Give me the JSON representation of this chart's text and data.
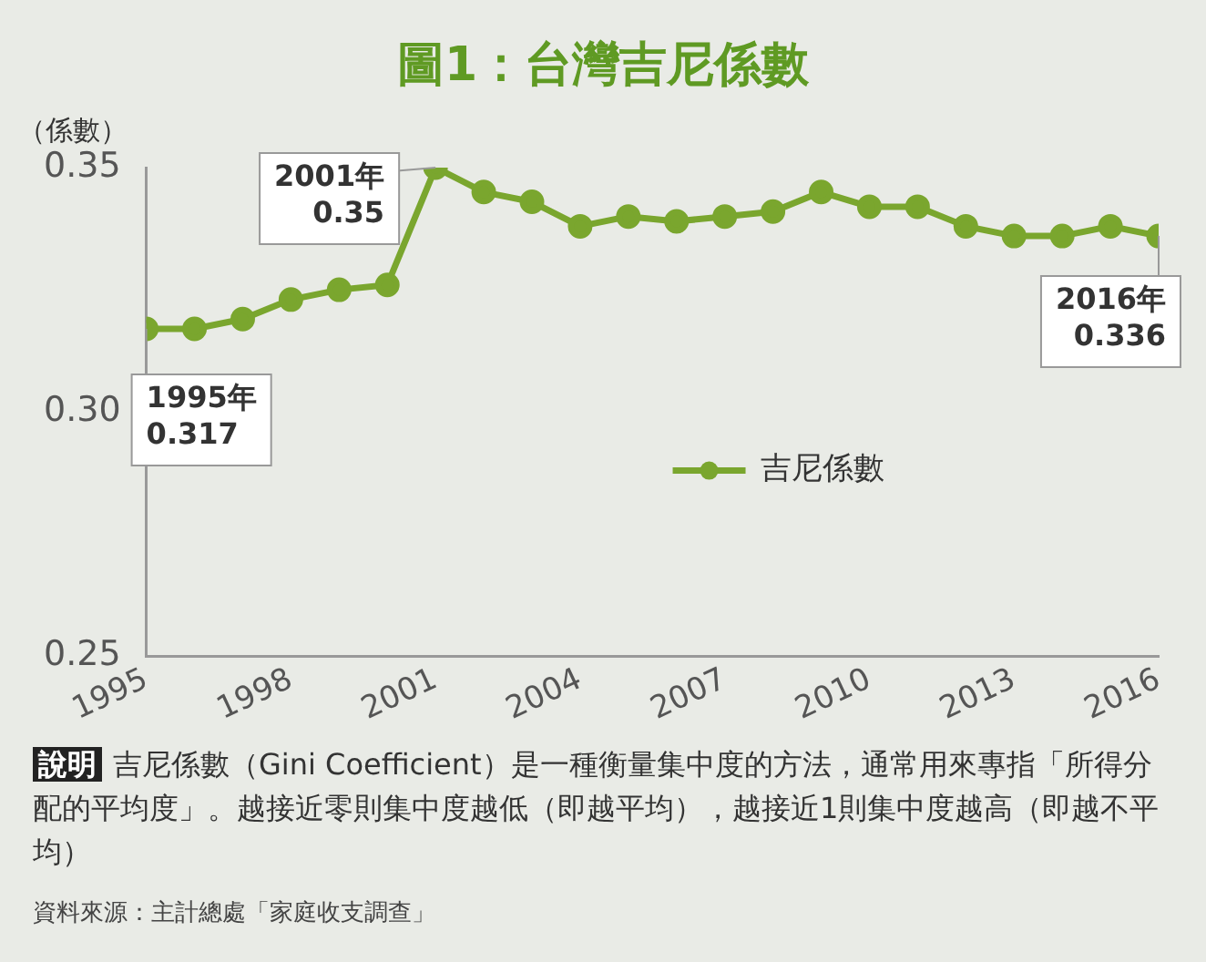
{
  "chart_data": {
    "type": "line",
    "title": "圖1：台灣吉尼係數",
    "ylabel": "（係數）",
    "x": [
      1995,
      1996,
      1997,
      1998,
      1999,
      2000,
      2001,
      2002,
      2003,
      2004,
      2005,
      2006,
      2007,
      2008,
      2009,
      2010,
      2011,
      2012,
      2013,
      2014,
      2015,
      2016
    ],
    "series": [
      {
        "name": "吉尼係數",
        "color": "#7aa62e",
        "values": [
          0.317,
          0.317,
          0.319,
          0.323,
          0.325,
          0.326,
          0.35,
          0.345,
          0.343,
          0.338,
          0.34,
          0.339,
          0.34,
          0.341,
          0.345,
          0.342,
          0.342,
          0.338,
          0.336,
          0.336,
          0.338,
          0.336
        ]
      }
    ],
    "xlim": [
      1995,
      2016
    ],
    "xticks": [
      1995,
      1998,
      2001,
      2004,
      2007,
      2010,
      2013,
      2016
    ],
    "ylim": [
      0.25,
      0.35
    ],
    "yticks": [
      0.25,
      {
        "value": 0.3,
        "label": "0.30"
      },
      0.35
    ],
    "grid": false,
    "legend": "right",
    "marker": "circle",
    "line_style": "solid",
    "annotations": [
      {
        "text": "1995年\n0.317",
        "x": 1995,
        "y": 0.317
      },
      {
        "text": "2001年\n0.35",
        "x": 2001,
        "y": 0.35
      },
      {
        "text": "2016年\n0.336",
        "x": 2016,
        "y": 0.336
      },
      "說明",
      "吉尼係數（Gini Coefficient）是一種衡量集中度的方法，通常用來專指「所得分配的平均度」。越接近零則集中度越低（即越平均），越接近1則集中度越高（即越不平均）",
      "資料來源：主計總處「家庭收支調查」"
    ]
  }
}
